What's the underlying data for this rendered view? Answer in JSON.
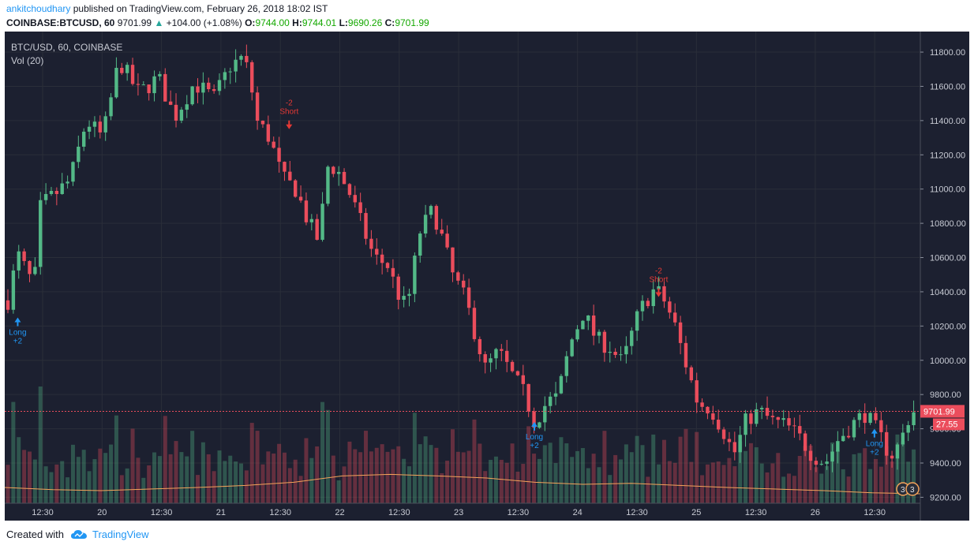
{
  "header": {
    "author": "ankitchoudhary",
    "published": "published on TradingView.com, February 26, 2018 18:02 IST",
    "symbol": "COINBASE:BTCUSD, 60",
    "price": "9701.99",
    "change_arrow": "▲",
    "change": "+104.00 (+1.08%)",
    "o_label": "O:",
    "o_value": "9744.00",
    "h_label": "H:",
    "h_value": "9744.01",
    "l_label": "L:",
    "l_value": "9690.26",
    "c_label": "C:",
    "c_value": "9701.99"
  },
  "footer": {
    "created_with": "Created with",
    "brand": "TradingView"
  },
  "colors": {
    "up": "#53b987",
    "down": "#eb4d5c",
    "background": "#1c2030",
    "grid": "#2a2e39",
    "ma": "#f5a35a",
    "signal_long": "#2196f3",
    "signal_short": "#e53935"
  },
  "chart_data": {
    "type": "candlestick",
    "title": "BTC/USD, 60, COINBASE",
    "indicator": "Vol (20)",
    "y_ticks": [
      "11800.00",
      "11600.00",
      "11400.00",
      "11200.00",
      "11000.00",
      "10800.00",
      "10600.00",
      "10400.00",
      "10200.00",
      "10000.00",
      "9800.00",
      "9600.00",
      "9400.00",
      "9200.00"
    ],
    "ylim": [
      9165,
      11920
    ],
    "x_tick_labels": [
      "12:30",
      "20",
      "12:30",
      "21",
      "12:30",
      "22",
      "12:30",
      "23",
      "12:30",
      "24",
      "12:30",
      "25",
      "12:30",
      "26",
      "12:30"
    ],
    "last_price": "9701.99",
    "last_price_value": 9701.99,
    "volume_badge": "27.55",
    "grid": true,
    "candle_count": 168,
    "path": [
      [
        0,
        10350
      ],
      [
        3,
        10620
      ],
      [
        8,
        10430
      ],
      [
        10,
        10900
      ],
      [
        15,
        10980
      ],
      [
        19,
        11050
      ],
      [
        24,
        11400
      ],
      [
        29,
        11300
      ],
      [
        34,
        11750
      ],
      [
        40,
        11560
      ],
      [
        46,
        11650
      ],
      [
        51,
        11420
      ],
      [
        57,
        11620
      ],
      [
        63,
        11530
      ],
      [
        68,
        11720
      ],
      [
        72,
        11770
      ],
      [
        74,
        11650
      ],
      [
        76,
        11400
      ],
      [
        80,
        11300
      ],
      [
        84,
        11060
      ],
      [
        88,
        11000
      ],
      [
        92,
        10800
      ],
      [
        95,
        10700
      ],
      [
        98,
        11150
      ],
      [
        101,
        11100
      ],
      [
        104,
        11000
      ],
      [
        108,
        10800
      ],
      [
        112,
        10600
      ],
      [
        116,
        10560
      ],
      [
        119,
        10400
      ],
      [
        122,
        10300
      ],
      [
        126,
        10750
      ],
      [
        130,
        10880
      ],
      [
        133,
        10700
      ],
      [
        136,
        10500
      ],
      [
        140,
        10350
      ],
      [
        143,
        10150
      ],
      [
        146,
        9950
      ],
      [
        150,
        10050
      ],
      [
        154,
        9920
      ],
      [
        158,
        9800
      ],
      [
        161,
        9640
      ],
      [
        165,
        9760
      ],
      [
        168,
        9780
      ],
      [
        172,
        10100
      ],
      [
        176,
        10280
      ],
      [
        180,
        10120
      ],
      [
        184,
        10080
      ],
      [
        188,
        9980
      ],
      [
        192,
        10230
      ],
      [
        195,
        10350
      ],
      [
        198,
        10420
      ],
      [
        201,
        10340
      ],
      [
        204,
        10200
      ],
      [
        207,
        10000
      ],
      [
        211,
        9750
      ],
      [
        215,
        9720
      ],
      [
        219,
        9580
      ],
      [
        222,
        9450
      ],
      [
        226,
        9660
      ],
      [
        230,
        9700
      ],
      [
        234,
        9640
      ],
      [
        238,
        9620
      ],
      [
        242,
        9550
      ],
      [
        246,
        9450
      ],
      [
        250,
        9400
      ],
      [
        254,
        9540
      ],
      [
        258,
        9620
      ],
      [
        262,
        9690
      ],
      [
        266,
        9580
      ],
      [
        270,
        9440
      ],
      [
        273,
        9520
      ],
      [
        275,
        9650
      ],
      [
        277,
        9700
      ]
    ],
    "signals": [
      {
        "type": "long",
        "label": "Long",
        "qty": "+2",
        "at": 3,
        "price": 10250
      },
      {
        "type": "short",
        "label": "Short",
        "qty": "-2",
        "at": 86,
        "price": 11350
      },
      {
        "type": "long",
        "label": "Long",
        "qty": "+2",
        "at": 161,
        "price": 9640
      },
      {
        "type": "short",
        "label": "Short",
        "qty": "-2",
        "at": 199,
        "price": 10370
      },
      {
        "type": "long",
        "label": "Long",
        "qty": "+2",
        "at": 265,
        "price": 9600
      }
    ],
    "volume_ma_shape": [
      0.3,
      0.26,
      0.24,
      0.27,
      0.3,
      0.34,
      0.4,
      0.52,
      0.55,
      0.52,
      0.48,
      0.4,
      0.36,
      0.38,
      0.34,
      0.3,
      0.27,
      0.24,
      0.2,
      0.18
    ]
  }
}
